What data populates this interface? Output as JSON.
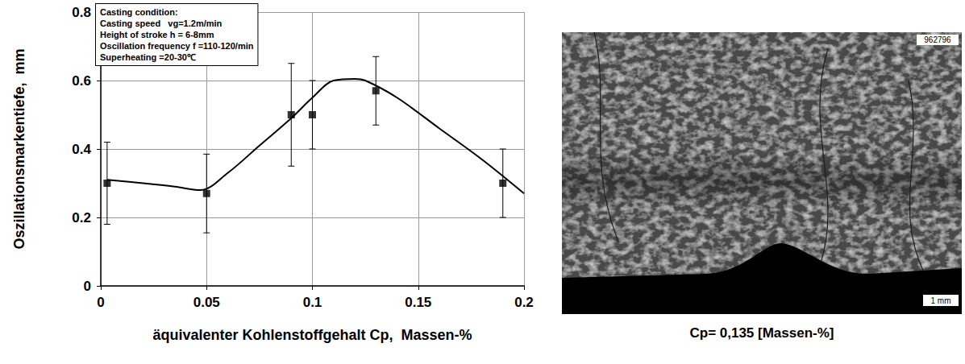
{
  "chart_data": {
    "type": "scatter",
    "x_label": "äquivalenter Kohlenstoffgehalt Cp,  Massen-%",
    "y_label": "Oszillationsmarkentiefe,  mm",
    "annotations": [
      "Casting condition:",
      "Casting speed   vg=1.2m/min",
      "Height of stroke h = 6-8mm",
      "Oscillation frequency f =110-120/min",
      "Superheating =20-30℃"
    ],
    "series": [
      {
        "type": "scatter",
        "color": "#000000",
        "marker": "square",
        "x": [
          0.003,
          0.05,
          0.09,
          0.1,
          0.13,
          0.19
        ],
        "values": [
          0.3,
          0.27,
          0.5,
          0.5,
          0.57,
          0.3
        ],
        "y_low": [
          0.18,
          0.155,
          0.35,
          0.4,
          0.47,
          0.2
        ],
        "y_high": [
          0.42,
          0.385,
          0.65,
          0.6,
          0.67,
          0.4
        ]
      },
      {
        "type": "line",
        "color": "#000000",
        "marker": "none",
        "line_style": "solid",
        "x": [
          0.003,
          0.02,
          0.035,
          0.047,
          0.06,
          0.075,
          0.09,
          0.1,
          0.11,
          0.12,
          0.125,
          0.14,
          0.16,
          0.18,
          0.2
        ],
        "values": [
          0.31,
          0.3,
          0.29,
          0.28,
          0.33,
          0.41,
          0.49,
          0.55,
          0.6,
          0.605,
          0.6,
          0.55,
          0.46,
          0.37,
          0.27
        ]
      }
    ],
    "xlim": [
      0,
      0.2
    ],
    "xticks": [
      0,
      0.05,
      0.1,
      0.15,
      0.2
    ],
    "ylim": [
      0,
      0.8
    ],
    "yticks": [
      0,
      0.2,
      0.4,
      0.6,
      0.8
    ],
    "grid": true
  },
  "image": {
    "id_label": "962796",
    "scale_bar": "1 mm",
    "caption": "Cp= 0,135 [Massen-%]"
  }
}
